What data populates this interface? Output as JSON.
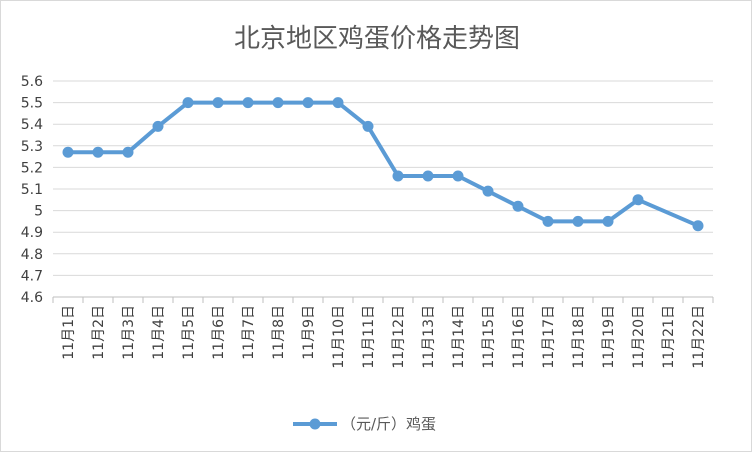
{
  "chart_data": {
    "type": "line",
    "title": "北京地区鸡蛋价格走势图",
    "xlabel": "",
    "ylabel": "",
    "categories": [
      "11月1日",
      "11月2日",
      "11月3日",
      "11月4日",
      "11月5日",
      "11月6日",
      "11月7日",
      "11月8日",
      "11月9日",
      "11月10日",
      "11月11日",
      "11月12日",
      "11月13日",
      "11月14日",
      "11月15日",
      "11月16日",
      "11月17日",
      "11月18日",
      "11月19日",
      "11月20日",
      "11月21日",
      "11月22日"
    ],
    "series": [
      {
        "name": "（元/斤）鸡蛋",
        "color": "#5b9bd5",
        "values": [
          5.27,
          5.27,
          5.27,
          5.39,
          5.5,
          5.5,
          5.5,
          5.5,
          5.5,
          5.5,
          5.39,
          5.16,
          5.16,
          5.16,
          5.09,
          5.02,
          4.95,
          4.95,
          4.95,
          5.05,
          null,
          4.93
        ]
      }
    ],
    "ylim": [
      4.6,
      5.6
    ],
    "yticks": [
      "4.6",
      "4.7",
      "4.8",
      "4.9",
      "5",
      "5.1",
      "5.2",
      "5.3",
      "5.4",
      "5.5",
      "5.6"
    ],
    "grid": true,
    "legend": "bottom",
    "gaps_connected": true
  }
}
